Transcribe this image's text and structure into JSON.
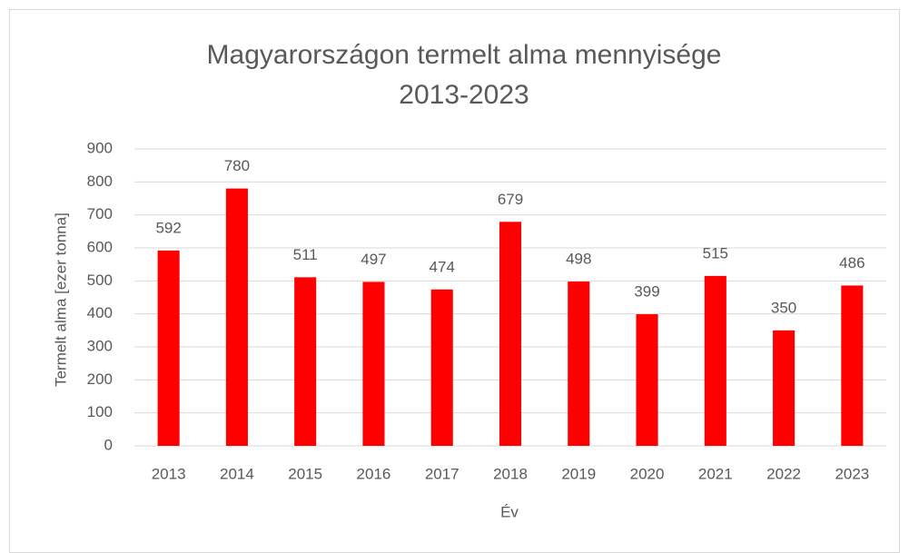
{
  "chart_data": {
    "type": "bar",
    "title": [
      "Magyarországon termelt alma mennyisége",
      "2013-2023"
    ],
    "x_label": "Év",
    "y_label": "Termelt alma [ezer tonna]",
    "categories": [
      "2013",
      "2014",
      "2015",
      "2016",
      "2017",
      "2018",
      "2019",
      "2020",
      "2021",
      "2022",
      "2023"
    ],
    "values": [
      592,
      780,
      511,
      497,
      474,
      679,
      498,
      399,
      515,
      350,
      486
    ],
    "color": "#ff0000",
    "ylim": [
      0,
      900
    ],
    "yticks": [
      0,
      100,
      200,
      300,
      400,
      500,
      600,
      700,
      800,
      900
    ],
    "grid": true
  }
}
